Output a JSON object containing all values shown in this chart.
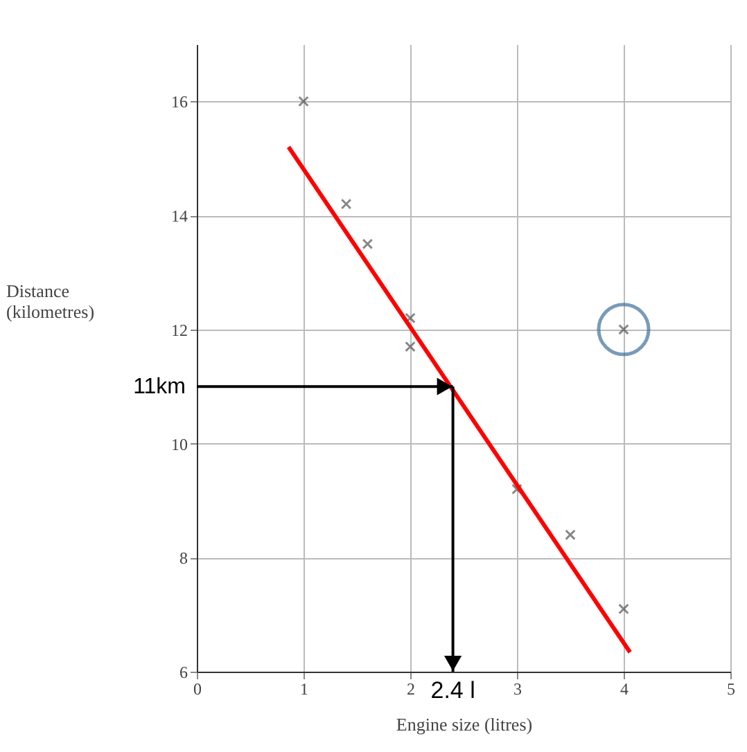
{
  "chart_data": {
    "type": "scatter",
    "xlabel": "Engine size (litres)",
    "ylabel": "Distance (kilometres)",
    "xlim": [
      0,
      5
    ],
    "ylim": [
      6,
      17
    ],
    "xticks": [
      0,
      1,
      2,
      3,
      4,
      5
    ],
    "yticks": [
      6,
      8,
      10,
      12,
      14,
      16
    ],
    "grid": true,
    "marker": "cross",
    "series": [
      {
        "color": "#555555",
        "x": [
          1,
          1.4,
          1.6,
          2,
          2,
          3,
          3.5,
          4,
          4
        ],
        "values": [
          16,
          14.2,
          13.5,
          12.2,
          11.7,
          9.2,
          8.4,
          7.1,
          12.0
        ]
      },
      {
        "type": "line",
        "color": "#ff0000",
        "x": [
          0.86,
          4.06
        ],
        "values": [
          15.2,
          6.34
        ],
        "marker": "none",
        "line_style": "solid"
      },
      {
        "type": "scatter",
        "color": "#41719c",
        "x": [
          4
        ],
        "values": [
          12.0
        ],
        "marker": "circle"
      }
    ],
    "annotations": [
      {
        "text": "11km",
        "x": 2.4,
        "y": 11
      },
      {
        "text": "2.4 l",
        "x": 2.4,
        "y": 11
      }
    ]
  }
}
